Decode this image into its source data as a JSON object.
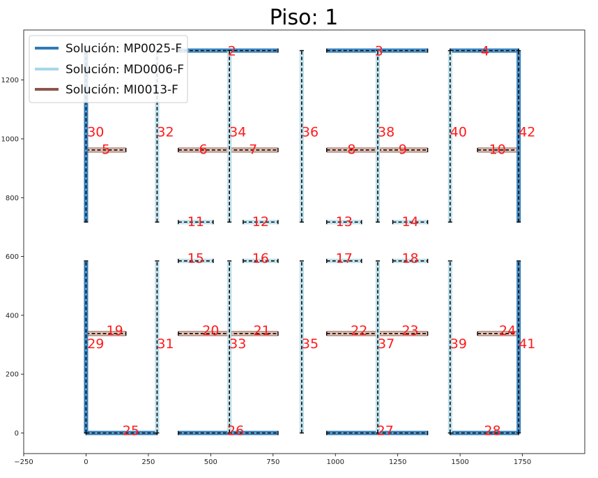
{
  "chart_data": {
    "type": "line",
    "title": "Piso: 1",
    "xlim": [
      -250,
      2000
    ],
    "ylim": [
      -70,
      1370
    ],
    "xticks": [
      -250,
      0,
      250,
      500,
      750,
      1000,
      1250,
      1500,
      1750
    ],
    "yticks": [
      0,
      200,
      400,
      600,
      800,
      1000,
      1200
    ],
    "grid": false,
    "legend_position": "top-left",
    "colors": {
      "MP": "#2e7ab8",
      "MD": "#a6d8e8",
      "MI": "#8c564b",
      "axis": "#000000",
      "label": "#ff1a1a"
    },
    "legend": [
      {
        "type": "MP",
        "label": "Solución: MP0025-F"
      },
      {
        "type": "MD",
        "label": "Solución: MD0006-F"
      },
      {
        "type": "MI",
        "label": "Solución: MI0013-F"
      }
    ],
    "segments": [
      {
        "id": "2",
        "type": "MP",
        "o": "h",
        "x1": 370,
        "x2": 770,
        "y": 1300,
        "lx": 585,
        "ly": 1300
      },
      {
        "id": "3",
        "type": "MP",
        "o": "h",
        "x1": 965,
        "x2": 1370,
        "y": 1300,
        "lx": 1175,
        "ly": 1300
      },
      {
        "id": "4",
        "type": "MP",
        "o": "h",
        "x1": 1460,
        "x2": 1735,
        "y": 1300,
        "lx": 1600,
        "ly": 1300
      },
      {
        "id": "5",
        "type": "MI",
        "o": "h",
        "x1": 0,
        "x2": 160,
        "y": 962,
        "lx": 80,
        "ly": 965
      },
      {
        "id": "6",
        "type": "MI",
        "o": "h",
        "x1": 370,
        "x2": 570,
        "y": 962,
        "lx": 470,
        "ly": 965
      },
      {
        "id": "7",
        "type": "MI",
        "o": "h",
        "x1": 570,
        "x2": 770,
        "y": 962,
        "lx": 670,
        "ly": 965
      },
      {
        "id": "8",
        "type": "MI",
        "o": "h",
        "x1": 965,
        "x2": 1170,
        "y": 962,
        "lx": 1065,
        "ly": 965
      },
      {
        "id": "9",
        "type": "MI",
        "o": "h",
        "x1": 1170,
        "x2": 1370,
        "y": 962,
        "lx": 1270,
        "ly": 965
      },
      {
        "id": "10",
        "type": "MI",
        "o": "h",
        "x1": 1570,
        "x2": 1735,
        "y": 962,
        "lx": 1650,
        "ly": 965
      },
      {
        "id": "11",
        "type": "MD",
        "o": "h",
        "x1": 370,
        "x2": 510,
        "y": 717,
        "lx": 440,
        "ly": 720
      },
      {
        "id": "12",
        "type": "MD",
        "o": "h",
        "x1": 630,
        "x2": 770,
        "y": 717,
        "lx": 700,
        "ly": 720
      },
      {
        "id": "13",
        "type": "MD",
        "o": "h",
        "x1": 965,
        "x2": 1105,
        "y": 717,
        "lx": 1035,
        "ly": 720
      },
      {
        "id": "14",
        "type": "MD",
        "o": "h",
        "x1": 1230,
        "x2": 1370,
        "y": 717,
        "lx": 1300,
        "ly": 720
      },
      {
        "id": "15",
        "type": "MD",
        "o": "h",
        "x1": 370,
        "x2": 510,
        "y": 585,
        "lx": 440,
        "ly": 595
      },
      {
        "id": "16",
        "type": "MD",
        "o": "h",
        "x1": 630,
        "x2": 770,
        "y": 585,
        "lx": 700,
        "ly": 595
      },
      {
        "id": "17",
        "type": "MD",
        "o": "h",
        "x1": 965,
        "x2": 1105,
        "y": 585,
        "lx": 1035,
        "ly": 595
      },
      {
        "id": "18",
        "type": "MD",
        "o": "h",
        "x1": 1230,
        "x2": 1370,
        "y": 585,
        "lx": 1300,
        "ly": 595
      },
      {
        "id": "19",
        "type": "MI",
        "o": "h",
        "x1": 0,
        "x2": 160,
        "y": 338,
        "lx": 115,
        "ly": 350
      },
      {
        "id": "20",
        "type": "MI",
        "o": "h",
        "x1": 370,
        "x2": 570,
        "y": 338,
        "lx": 500,
        "ly": 350
      },
      {
        "id": "21",
        "type": "MI",
        "o": "h",
        "x1": 570,
        "x2": 770,
        "y": 338,
        "lx": 705,
        "ly": 350
      },
      {
        "id": "22",
        "type": "MI",
        "o": "h",
        "x1": 965,
        "x2": 1170,
        "y": 338,
        "lx": 1095,
        "ly": 350
      },
      {
        "id": "23",
        "type": "MI",
        "o": "h",
        "x1": 1170,
        "x2": 1370,
        "y": 338,
        "lx": 1300,
        "ly": 350
      },
      {
        "id": "24",
        "type": "MI",
        "o": "h",
        "x1": 1570,
        "x2": 1735,
        "y": 338,
        "lx": 1690,
        "ly": 350
      },
      {
        "id": "25",
        "type": "MP",
        "o": "h",
        "x1": 0,
        "x2": 285,
        "y": 0,
        "lx": 180,
        "ly": 10
      },
      {
        "id": "26",
        "type": "MP",
        "o": "h",
        "x1": 370,
        "x2": 770,
        "y": 0,
        "lx": 600,
        "ly": 10
      },
      {
        "id": "27",
        "type": "MP",
        "o": "h",
        "x1": 965,
        "x2": 1370,
        "y": 0,
        "lx": 1200,
        "ly": 10
      },
      {
        "id": "28",
        "type": "MP",
        "o": "h",
        "x1": 1460,
        "x2": 1735,
        "y": 0,
        "lx": 1630,
        "ly": 10
      },
      {
        "id": "29",
        "type": "MP",
        "o": "v",
        "x": 0,
        "y1": 0,
        "y2": 585,
        "lx": 5,
        "ly": 305
      },
      {
        "id": "30",
        "type": "MP",
        "o": "v",
        "x": 0,
        "y1": 717,
        "y2": 1300,
        "lx": 5,
        "ly": 1025
      },
      {
        "id": "31",
        "type": "MD",
        "o": "v",
        "x": 285,
        "y1": 0,
        "y2": 585,
        "lx": 285,
        "ly": 305
      },
      {
        "id": "32",
        "type": "MD",
        "o": "v",
        "x": 285,
        "y1": 717,
        "y2": 1300,
        "lx": 285,
        "ly": 1025
      },
      {
        "id": "33",
        "type": "MD",
        "o": "v",
        "x": 575,
        "y1": 0,
        "y2": 585,
        "lx": 575,
        "ly": 305
      },
      {
        "id": "34",
        "type": "MD",
        "o": "v",
        "x": 575,
        "y1": 717,
        "y2": 1300,
        "lx": 575,
        "ly": 1025
      },
      {
        "id": "35",
        "type": "MD",
        "o": "v",
        "x": 865,
        "y1": 0,
        "y2": 585,
        "lx": 865,
        "ly": 305
      },
      {
        "id": "36",
        "type": "MD",
        "o": "v",
        "x": 865,
        "y1": 717,
        "y2": 1300,
        "lx": 865,
        "ly": 1025
      },
      {
        "id": "37",
        "type": "MD",
        "o": "v",
        "x": 1170,
        "y1": 0,
        "y2": 585,
        "lx": 1170,
        "ly": 305
      },
      {
        "id": "38",
        "type": "MD",
        "o": "v",
        "x": 1170,
        "y1": 717,
        "y2": 1300,
        "lx": 1170,
        "ly": 1025
      },
      {
        "id": "39",
        "type": "MD",
        "o": "v",
        "x": 1460,
        "y1": 0,
        "y2": 585,
        "lx": 1460,
        "ly": 305
      },
      {
        "id": "40",
        "type": "MD",
        "o": "v",
        "x": 1460,
        "y1": 717,
        "y2": 1300,
        "lx": 1460,
        "ly": 1025
      },
      {
        "id": "41",
        "type": "MP",
        "o": "v",
        "x": 1735,
        "y1": 0,
        "y2": 585,
        "lx": 1735,
        "ly": 305
      },
      {
        "id": "42",
        "type": "MP",
        "o": "v",
        "x": 1735,
        "y1": 717,
        "y2": 1300,
        "lx": 1735,
        "ly": 1025
      }
    ]
  }
}
